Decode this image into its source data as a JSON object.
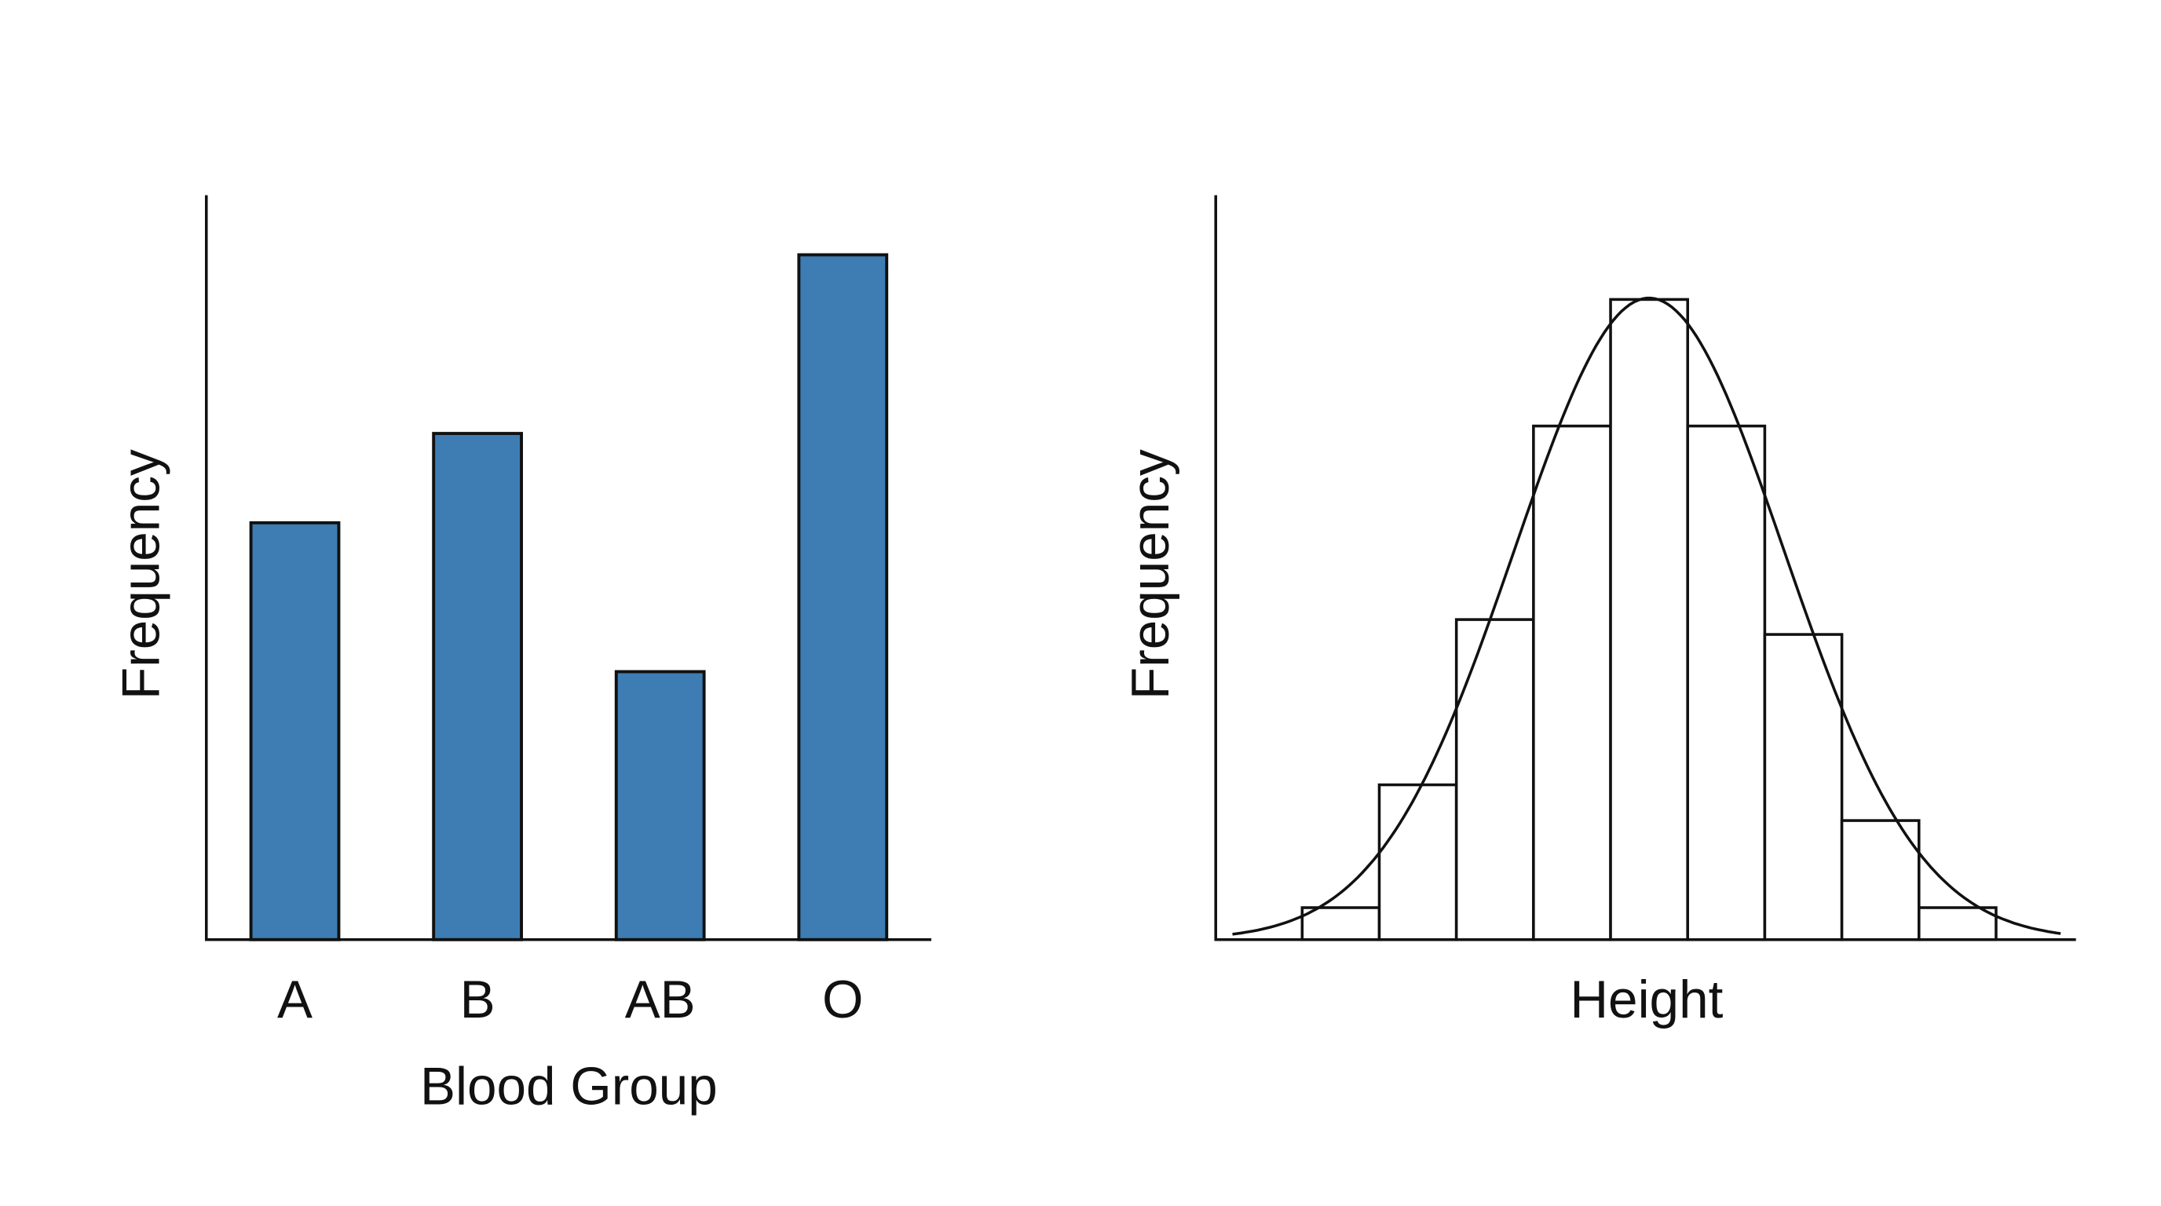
{
  "chart_data": [
    {
      "type": "bar",
      "title": "",
      "xlabel": "Blood Group",
      "ylabel": "Frequency",
      "categories": [
        "A",
        "B",
        "AB",
        "O"
      ],
      "values": [
        56,
        68,
        36,
        92
      ],
      "ylim": [
        0,
        100
      ],
      "y_ticks_shown": false,
      "grid": false,
      "bar_color": "#3d7db3",
      "edge_color": "#111111"
    },
    {
      "type": "bar",
      "subtype": "histogram-with-normal-curve",
      "title": "",
      "xlabel": "Height",
      "ylabel": "Frequency",
      "bins": 9,
      "values": [
        4.3,
        20.8,
        43,
        69,
        86,
        69,
        41,
        16,
        4.3
      ],
      "ylim": [
        0,
        100
      ],
      "x_ticks_shown": false,
      "y_ticks_shown": false,
      "grid": false,
      "bar_color": "#ffffff",
      "edge_color": "#111111",
      "curve": {
        "type": "normal",
        "peak": 86,
        "color": "#111111"
      }
    }
  ]
}
